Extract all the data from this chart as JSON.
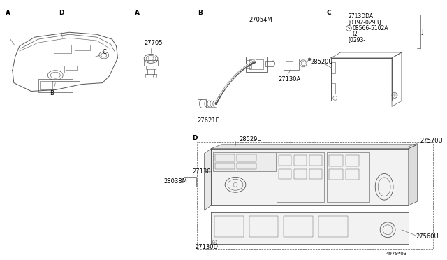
{
  "background_color": "#ffffff",
  "fig_width": 6.4,
  "fig_height": 3.72,
  "dpi": 100,
  "lc": "#555555",
  "tc": "#000000",
  "parts": {
    "27705": "27705",
    "27054M": "27054M",
    "27130A": "27130A",
    "27621E": "27621E",
    "2713DDA": "2713DDA",
    "note1": "[0192-0293]",
    "note2": "08566-5102A",
    "note3": "(2",
    "note4": "[0293-",
    "28520U": "28520U",
    "28529U": "28529U",
    "27130": "27130",
    "27130D": "27130D",
    "28038M": "28038M",
    "27570U": "27570U",
    "27560U": "27560U",
    "footer": "4979*03"
  }
}
